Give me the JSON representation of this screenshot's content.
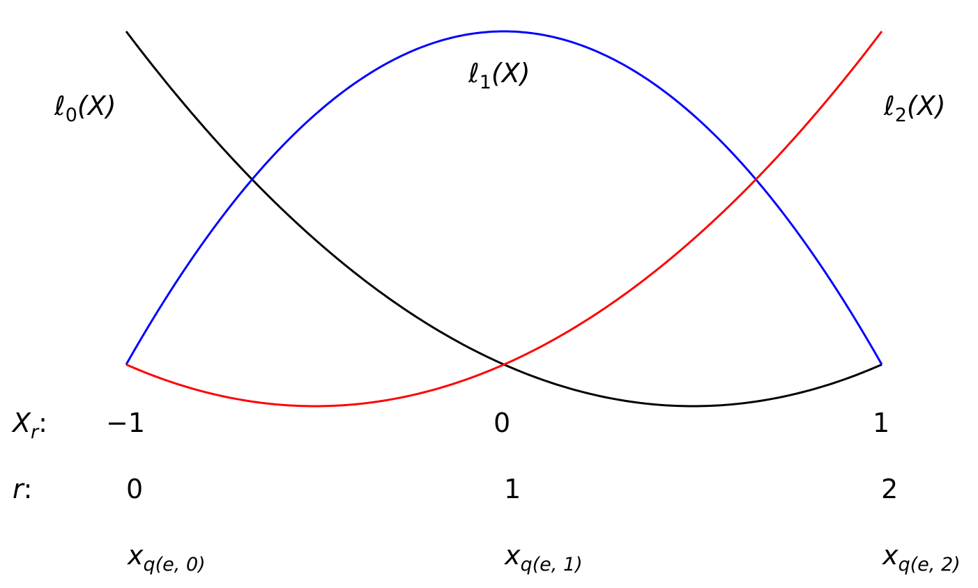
{
  "chart_data": {
    "type": "line",
    "title": "",
    "xlabel": "",
    "ylabel": "",
    "grid": false,
    "xlim": [
      -1,
      1
    ],
    "ylim": [
      -0.125,
      1
    ],
    "series": [
      {
        "name": "ℓ0(X)",
        "color": "#000000",
        "x": [
          -1.0,
          -0.75,
          -0.5,
          -0.25,
          0.0,
          0.25,
          0.5,
          0.75,
          1.0
        ],
        "y": [
          1.0,
          0.65625,
          0.375,
          0.15625,
          0.0,
          -0.09375,
          -0.125,
          -0.09375,
          0.0
        ]
      },
      {
        "name": "ℓ1(X)",
        "color": "#0000ff",
        "x": [
          -1.0,
          -0.75,
          -0.5,
          -0.25,
          0.0,
          0.25,
          0.5,
          0.75,
          1.0
        ],
        "y": [
          0.0,
          0.4375,
          0.75,
          0.9375,
          1.0,
          0.9375,
          0.75,
          0.4375,
          0.0
        ]
      },
      {
        "name": "ℓ2(X)",
        "color": "#ff0000",
        "x": [
          -1.0,
          -0.75,
          -0.5,
          -0.25,
          0.0,
          0.25,
          0.5,
          0.75,
          1.0
        ],
        "y": [
          0.0,
          -0.09375,
          -0.125,
          -0.09375,
          0.0,
          0.15625,
          0.375,
          0.65625,
          1.0
        ]
      }
    ],
    "curve_labels": [
      {
        "base": "ℓ",
        "sub": "0",
        "tail": "(X)"
      },
      {
        "base": "ℓ",
        "sub": "1",
        "tail": "(X)"
      },
      {
        "base": "ℓ",
        "sub": "2",
        "tail": "(X)"
      }
    ],
    "rows": {
      "xr_label": {
        "base": "X",
        "sub": "r",
        "tail": ":"
      },
      "xr_values": [
        "−1",
        "0",
        "1"
      ],
      "r_label": {
        "base": "r",
        "tail": ":"
      },
      "r_values": [
        "0",
        "1",
        "2"
      ],
      "xq_values": [
        {
          "base": "x",
          "sub": "q(e, 0)"
        },
        {
          "base": "x",
          "sub": "q(e, 1)"
        },
        {
          "base": "x",
          "sub": "q(e, 2)"
        }
      ]
    }
  }
}
